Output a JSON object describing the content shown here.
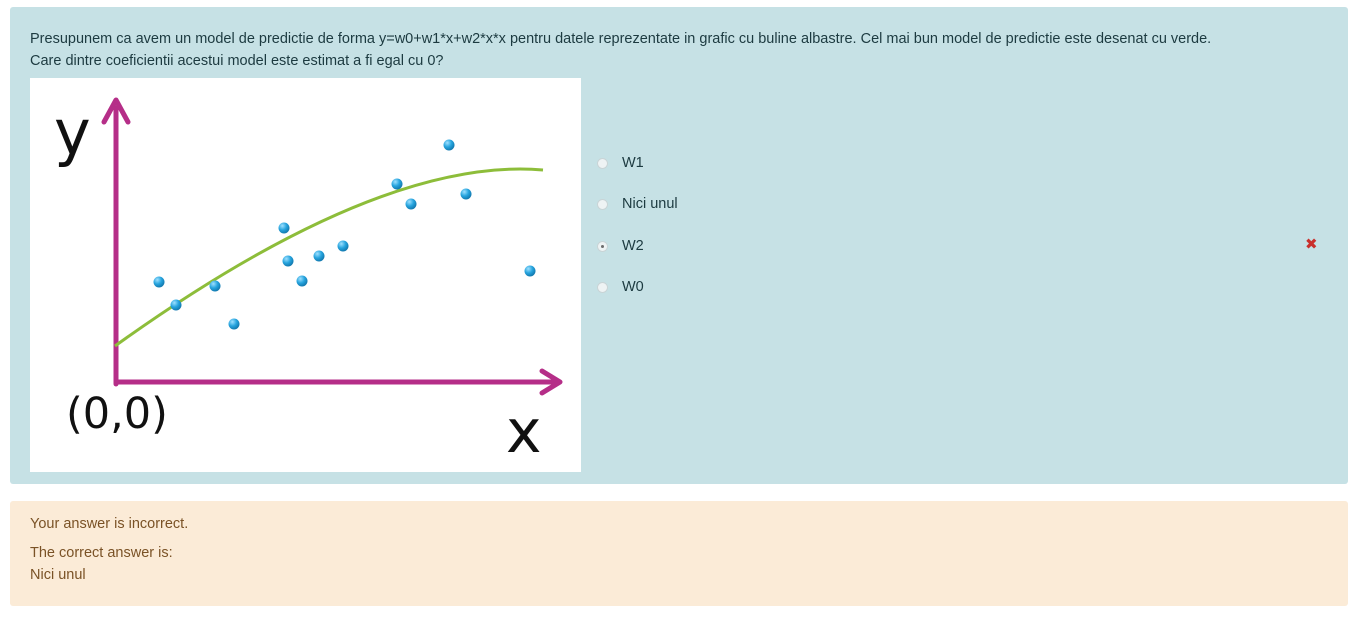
{
  "question": {
    "text_line1": "Presupunem ca avem un model de predictie de forma y=w0+w1*x+w2*x*x pentru datele reprezentate in grafic cu buline albastre. Cel mai bun model de predictie este desenat cu verde.",
    "text_line2": "Care dintre coeficientii acestui model este estimat a fi egal cu 0?"
  },
  "figure": {
    "y_axis_label": "y",
    "x_axis_label": "x",
    "origin_label": "(0,0)",
    "colors": {
      "axes": "#b52e88",
      "curve": "#8dbd3a",
      "points": "#26a4de"
    }
  },
  "options": [
    {
      "label": "W1",
      "selected": false,
      "status": ""
    },
    {
      "label": "Nici unul",
      "selected": false,
      "status": ""
    },
    {
      "label": "W2",
      "selected": true,
      "status": "incorrect"
    },
    {
      "label": "W0",
      "selected": false,
      "status": ""
    }
  ],
  "feedback": {
    "result": "Your answer is incorrect.",
    "correct_intro": "The correct answer is:",
    "correct_answer": "Nici unul"
  },
  "icons": {
    "wrong": "cross-icon"
  }
}
